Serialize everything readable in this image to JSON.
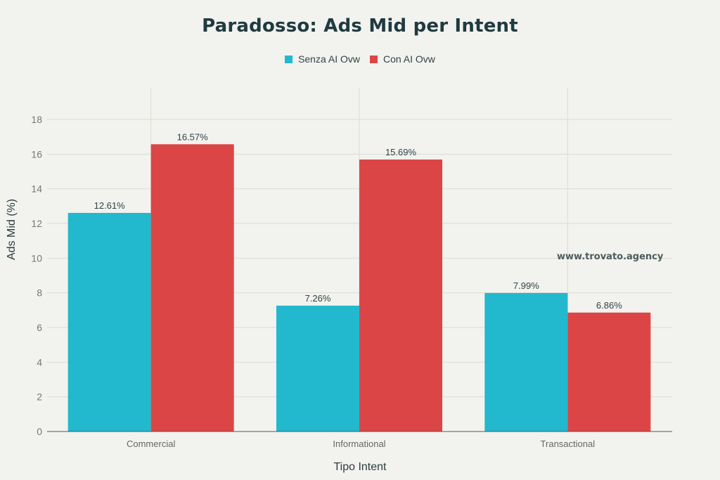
{
  "title": "Paradosso: Ads Mid per Intent",
  "legend": [
    {
      "label": "Senza AI Ovw",
      "color": "#22b8cd"
    },
    {
      "label": "Con AI Ovw",
      "color": "#dc4546"
    }
  ],
  "watermark": "www.trovato.agency",
  "axes": {
    "xlabel": "Tipo Intent",
    "ylabel": "Ads Mid (%)",
    "yticks": [
      0,
      2,
      4,
      6,
      8,
      10,
      12,
      14,
      16,
      18
    ]
  },
  "chart_data": {
    "type": "bar",
    "title": "Paradosso: Ads Mid per Intent",
    "categories": [
      "Commercial",
      "Informational",
      "Transactional"
    ],
    "series": [
      {
        "name": "Senza AI Ovw",
        "color": "#22b8cd",
        "values": [
          12.61,
          7.26,
          7.99
        ],
        "labels": [
          "12.61%",
          "7.26%",
          "7.99%"
        ]
      },
      {
        "name": "Con AI Ovw",
        "color": "#dc4546",
        "values": [
          16.57,
          15.69,
          6.86
        ],
        "labels": [
          "16.57%",
          "15.69%",
          "6.86%"
        ]
      }
    ],
    "xlabel": "Tipo Intent",
    "ylabel": "Ads Mid (%)",
    "ylim": [
      0,
      18
    ],
    "grid": true,
    "legend_position": "top"
  }
}
